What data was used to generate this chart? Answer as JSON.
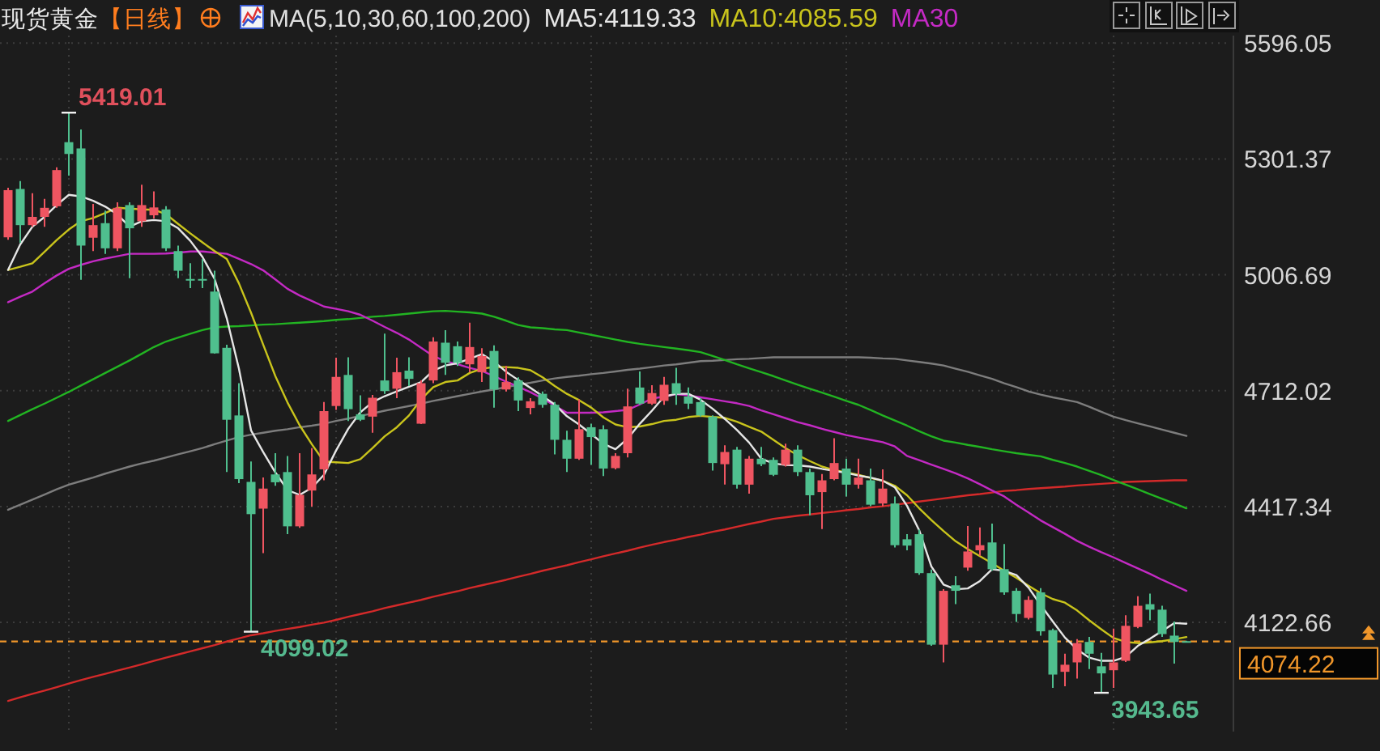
{
  "chart_data": {
    "type": "candlestick",
    "title": "现货黄金",
    "subtitle": "【日线】",
    "legend_title": "MA(5,10,30,60,100,200)",
    "legend": "top right",
    "grid": true,
    "tick_labels": "y",
    "ylim": [
      3845,
      5615
    ],
    "yticks": [
      4122.66,
      4417.34,
      4712.02,
      5006.69,
      5301.37,
      5596.05
    ],
    "categories": [
      null,
      null,
      null,
      null,
      null,
      null,
      null,
      null,
      null,
      null,
      null,
      null,
      null,
      null,
      null,
      null,
      null,
      null,
      null,
      null,
      null,
      null,
      null,
      null,
      null,
      null,
      null,
      null,
      null,
      null,
      null,
      null,
      null,
      null,
      null,
      null,
      null,
      null,
      null,
      null,
      null,
      null,
      null,
      null,
      null,
      null,
      null,
      null,
      null,
      null,
      null,
      null,
      null,
      null,
      null,
      null,
      null,
      null,
      null,
      null,
      null,
      null,
      null,
      null,
      null,
      null,
      null,
      null,
      null,
      null,
      null,
      null,
      null,
      null,
      null,
      null,
      null,
      null,
      null,
      null,
      null,
      null,
      null,
      null,
      null,
      null,
      null,
      null,
      null,
      null,
      null,
      null,
      null,
      null,
      null,
      null,
      null,
      null
    ],
    "ohlc": [
      [
        5102,
        5228,
        5096,
        5222
      ],
      [
        5225,
        5245,
        5088,
        5133
      ],
      [
        5133,
        5214,
        5129,
        5154
      ],
      [
        5154,
        5200,
        5129,
        5177
      ],
      [
        5181,
        5280,
        5177,
        5273
      ],
      [
        5344,
        5419.01,
        5259,
        5314
      ],
      [
        5328,
        5376,
        4994,
        5081
      ],
      [
        5101,
        5187,
        5067,
        5133
      ],
      [
        5138,
        5170,
        5060,
        5074
      ],
      [
        5074,
        5191,
        5067,
        5177
      ],
      [
        5184,
        5191,
        4998,
        5125
      ],
      [
        5143,
        5236,
        5129,
        5184
      ],
      [
        5158,
        5219,
        5150,
        5178
      ],
      [
        5173,
        5181,
        5067,
        5074
      ],
      [
        5067,
        5081,
        4998,
        5017
      ],
      [
        4996,
        5036,
        4973,
        4993
      ],
      [
        4996,
        5047,
        4973,
        4994
      ],
      [
        4964,
        5017,
        4806,
        4807
      ],
      [
        4821,
        4829,
        4505,
        4638
      ],
      [
        4649,
        4731,
        4477,
        4487
      ],
      [
        4480,
        4532,
        4099.02,
        4398
      ],
      [
        4412,
        4491,
        4299,
        4463
      ],
      [
        4499,
        4553,
        4470,
        4479
      ],
      [
        4505,
        4546,
        4347,
        4367
      ],
      [
        4367,
        4553,
        4363,
        4447
      ],
      [
        4458,
        4566,
        4417,
        4499
      ],
      [
        4512,
        4683,
        4484,
        4660
      ],
      [
        4673,
        4796,
        4663,
        4747
      ],
      [
        4752,
        4797,
        4635,
        4665
      ],
      [
        4652,
        4700,
        4635,
        4638
      ],
      [
        4646,
        4701,
        4605,
        4694
      ],
      [
        4738,
        4857,
        4704,
        4711
      ],
      [
        4717,
        4796,
        4693,
        4759
      ],
      [
        4763,
        4797,
        4724,
        4742
      ],
      [
        4628,
        4738,
        4627,
        4731
      ],
      [
        4738,
        4848,
        4731,
        4837
      ],
      [
        4834,
        4866,
        4752,
        4783
      ],
      [
        4825,
        4837,
        4775,
        4783
      ],
      [
        4779,
        4885,
        4759,
        4823
      ],
      [
        4759,
        4820,
        4734,
        4800
      ],
      [
        4813,
        4827,
        4669,
        4715
      ],
      [
        4715,
        4775,
        4710,
        4734
      ],
      [
        4738,
        4746,
        4660,
        4687
      ],
      [
        4668,
        4693,
        4652,
        4685
      ],
      [
        4704,
        4710,
        4669,
        4676
      ],
      [
        4676,
        4683,
        4550,
        4587
      ],
      [
        4587,
        4610,
        4505,
        4539
      ],
      [
        4539,
        4690,
        4536,
        4614
      ],
      [
        4619,
        4628,
        4523,
        4594
      ],
      [
        4614,
        4624,
        4495,
        4514
      ],
      [
        4515,
        4553,
        4512,
        4546
      ],
      [
        4553,
        4717,
        4542,
        4672
      ],
      [
        4720,
        4761,
        4676,
        4679
      ],
      [
        4679,
        4726,
        4676,
        4706
      ],
      [
        4686,
        4747,
        4676,
        4727
      ],
      [
        4731,
        4770,
        4676,
        4704
      ],
      [
        4697,
        4720,
        4665,
        4679
      ],
      [
        4683,
        4693,
        4646,
        4649
      ],
      [
        4646,
        4649,
        4509,
        4528
      ],
      [
        4525,
        4573,
        4473,
        4556
      ],
      [
        4562,
        4569,
        4463,
        4473
      ],
      [
        4473,
        4546,
        4450,
        4539
      ],
      [
        4539,
        4569,
        4520,
        4525
      ],
      [
        4536,
        4542,
        4495,
        4498
      ],
      [
        4523,
        4577,
        4519,
        4562
      ],
      [
        4562,
        4573,
        4495,
        4505
      ],
      [
        4505,
        4514,
        4395,
        4446
      ],
      [
        4454,
        4500,
        4360,
        4484
      ],
      [
        4487,
        4591,
        4484,
        4528
      ],
      [
        4514,
        4539,
        4443,
        4473
      ],
      [
        4473,
        4539,
        4463,
        4491
      ],
      [
        4484,
        4514,
        4418,
        4422
      ],
      [
        4425,
        4512,
        4418,
        4463
      ],
      [
        4425,
        4443,
        4313,
        4319
      ],
      [
        4334,
        4347,
        4306,
        4318
      ],
      [
        4347,
        4359,
        4244,
        4248
      ],
      [
        4248,
        4257,
        4063,
        4066
      ],
      [
        4066,
        4207,
        4021,
        4203
      ],
      [
        4217,
        4240,
        4169,
        4203
      ],
      [
        4262,
        4368,
        4254,
        4303
      ],
      [
        4306,
        4364,
        4292,
        4319
      ],
      [
        4326,
        4374,
        4254,
        4258
      ],
      [
        4258,
        4322,
        4193,
        4199
      ],
      [
        4203,
        4210,
        4124,
        4144
      ],
      [
        4134,
        4189,
        4130,
        4180
      ],
      [
        4199,
        4210,
        4089,
        4100
      ],
      [
        4103,
        4107,
        3956,
        3990
      ],
      [
        3997,
        4043,
        3960,
        4015
      ],
      [
        4021,
        4080,
        3980,
        4070
      ],
      [
        4073,
        4086,
        4004,
        4043
      ],
      [
        4011,
        4045,
        3943.65,
        3993
      ],
      [
        4001,
        4107,
        3956,
        4021
      ],
      [
        4025,
        4141,
        4022,
        4114
      ],
      [
        4111,
        4189,
        4108,
        4165
      ],
      [
        4169,
        4196,
        4128,
        4155
      ],
      [
        4155,
        4165,
        4086,
        4093
      ],
      [
        4089,
        4125,
        4018,
        4073
      ],
      [
        4075,
        4076,
        4073,
        4074.22
      ]
    ],
    "series": [
      {
        "name": "MA5:4119.33",
        "type": "line",
        "color": "#e6e6e6",
        "values": [
          5019,
          5084,
          5129,
          5154,
          5184,
          5210,
          5206,
          5195,
          5180,
          5160,
          5129,
          5143,
          5146,
          5143,
          5125,
          5093,
          5052,
          4996,
          4896,
          4768,
          4611,
          4556,
          4504,
          4459,
          4447,
          4465,
          4498,
          4560,
          4615,
          4657,
          4683,
          4698,
          4710,
          4722,
          4734,
          4763,
          4776,
          4782,
          4793,
          4805,
          4786,
          4760,
          4739,
          4719,
          4698,
          4677,
          4647,
          4626,
          4602,
          4577,
          4563,
          4590,
          4628,
          4661,
          4697,
          4704,
          4704,
          4689,
          4666,
          4640,
          4612,
          4580,
          4539,
          4527,
          4523,
          4522,
          4519,
          4513,
          4508,
          4503,
          4496,
          4491,
          4483,
          4466,
          4419,
          4357,
          4265,
          4219,
          4207,
          4209,
          4228,
          4258,
          4254,
          4243,
          4211,
          4167,
          4125,
          4084,
          4054,
          4033,
          4025,
          4025,
          4035,
          4063,
          4081,
          4101,
          4121,
          4119.33
        ]
      },
      {
        "name": "MA10:4085.59",
        "type": "line",
        "color": "#c9c41c",
        "values": [
          5019,
          5027,
          5036,
          5065,
          5095,
          5122,
          5143,
          5151,
          5164,
          5177,
          5175,
          5173,
          5172,
          5161,
          5136,
          5112,
          5089,
          5067,
          5047,
          4985,
          4910,
          4829,
          4749,
          4682,
          4624,
          4576,
          4532,
          4530,
          4528,
          4538,
          4566,
          4596,
          4619,
          4649,
          4690,
          4721,
          4734,
          4738,
          4757,
          4768,
          4772,
          4772,
          4770,
          4764,
          4746,
          4724,
          4704,
          4688,
          4669,
          4644,
          4626,
          4619,
          4621,
          4627,
          4635,
          4638,
          4645,
          4648,
          4645,
          4643,
          4633,
          4620,
          4608,
          4587,
          4566,
          4548,
          4533,
          4519,
          4510,
          4504,
          4498,
          4490,
          4483,
          4470,
          4446,
          4413,
          4383,
          4355,
          4329,
          4309,
          4291,
          4273,
          4254,
          4236,
          4216,
          4197,
          4182,
          4173,
          4153,
          4128,
          4105,
          4083,
          4073,
          4070,
          4072,
          4075,
          4080,
          4085.59
        ]
      },
      {
        "name": "MA30",
        "type": "line",
        "color": "#c42ac4",
        "values": [
          4937,
          4951,
          4964,
          4985,
          5005,
          5022,
          5032,
          5041,
          5048,
          5054,
          5060,
          5060,
          5060,
          5061,
          5063,
          5066,
          5066,
          5063,
          5060,
          5047,
          5034,
          5018,
          4995,
          4971,
          4954,
          4940,
          4926,
          4920,
          4914,
          4905,
          4890,
          4874,
          4859,
          4842,
          4821,
          4800,
          4787,
          4779,
          4770,
          4762,
          4749,
          4735,
          4722,
          4708,
          4692,
          4674,
          4656,
          4656,
          4656,
          4657,
          4660,
          4663,
          4677,
          4692,
          4697,
          4703,
          4700,
          4695,
          4690,
          4685,
          4680,
          4673,
          4662,
          4652,
          4642,
          4632,
          4624,
          4615,
          4607,
          4599,
          4593,
          4587,
          4581,
          4570,
          4546,
          4535,
          4524,
          4513,
          4502,
          4489,
          4474,
          4458,
          4443,
          4422,
          4402,
          4382,
          4365,
          4348,
          4330,
          4315,
          4301,
          4288,
          4274,
          4260,
          4246,
          4231,
          4217,
          4203
        ]
      },
      {
        "type": "line",
        "color": "#22b422",
        "values": [
          4635,
          4650,
          4665,
          4679,
          4694,
          4709,
          4725,
          4741,
          4757,
          4773,
          4789,
          4806,
          4823,
          4837,
          4847,
          4857,
          4866,
          4873,
          4875,
          4876,
          4878,
          4880,
          4881,
          4883,
          4885,
          4887,
          4889,
          4892,
          4894,
          4897,
          4900,
          4902,
          4905,
          4908,
          4911,
          4914,
          4915,
          4913,
          4911,
          4908,
          4900,
          4890,
          4879,
          4873,
          4871,
          4868,
          4866,
          4860,
          4854,
          4848,
          4842,
          4836,
          4831,
          4827,
          4823,
          4819,
          4815,
          4810,
          4800,
          4790,
          4779,
          4769,
          4759,
          4749,
          4738,
          4727,
          4717,
          4707,
          4697,
          4686,
          4676,
          4663,
          4649,
          4636,
          4623,
          4609,
          4596,
          4585,
          4580,
          4574,
          4569,
          4563,
          4558,
          4553,
          4549,
          4545,
          4536,
          4528,
          4519,
          4508,
          4497,
          4485,
          4473,
          4461,
          4449,
          4437,
          4425,
          4413
        ]
      },
      {
        "type": "line",
        "color": "#7d7d7d",
        "values": [
          4409,
          4422,
          4435,
          4448,
          4461,
          4473,
          4482,
          4491,
          4501,
          4510,
          4519,
          4527,
          4534,
          4542,
          4550,
          4558,
          4566,
          4576,
          4585,
          4594,
          4600,
          4605,
          4610,
          4614,
          4619,
          4623,
          4628,
          4635,
          4641,
          4648,
          4654,
          4661,
          4667,
          4673,
          4679,
          4686,
          4692,
          4698,
          4704,
          4710,
          4715,
          4721,
          4727,
          4732,
          4738,
          4743,
          4747,
          4750,
          4754,
          4757,
          4761,
          4765,
          4768,
          4772,
          4776,
          4779,
          4783,
          4787,
          4788,
          4790,
          4792,
          4793,
          4795,
          4797,
          4797,
          4797,
          4797,
          4797,
          4797,
          4797,
          4797,
          4796,
          4794,
          4793,
          4789,
          4785,
          4781,
          4776,
          4768,
          4760,
          4751,
          4742,
          4731,
          4721,
          4710,
          4702,
          4695,
          4689,
          4683,
          4671,
          4658,
          4646,
          4637,
          4629,
          4621,
          4613,
          4605,
          4597
        ]
      },
      {
        "type": "line",
        "color": "#d42a2a",
        "values": [
          3923,
          3932,
          3941,
          3949,
          3958,
          3967,
          3976,
          3984,
          3992,
          4000,
          4008,
          4016,
          4025,
          4033,
          4041,
          4049,
          4057,
          4065,
          4074,
          4082,
          4090,
          4095,
          4101,
          4106,
          4111,
          4117,
          4122,
          4129,
          4137,
          4144,
          4151,
          4159,
          4166,
          4173,
          4180,
          4188,
          4195,
          4202,
          4210,
          4217,
          4224,
          4231,
          4239,
          4246,
          4254,
          4261,
          4268,
          4276,
          4283,
          4291,
          4298,
          4305,
          4313,
          4320,
          4327,
          4333,
          4340,
          4346,
          4353,
          4359,
          4366,
          4373,
          4379,
          4386,
          4390,
          4394,
          4397,
          4401,
          4404,
          4408,
          4411,
          4415,
          4418,
          4422,
          4426,
          4430,
          4434,
          4438,
          4442,
          4446,
          4449,
          4453,
          4457,
          4459,
          4462,
          4464,
          4466,
          4468,
          4471,
          4473,
          4475,
          4477,
          4480,
          4481,
          4482,
          4483,
          4484,
          4484
        ]
      }
    ],
    "ref_lines": [
      {
        "axis": "y",
        "value": 4074.22,
        "label": "4074.22",
        "color": "#f0962a",
        "line_style": "dashed"
      }
    ],
    "annotations": [
      "5419.01",
      "4099.02",
      "3943.65"
    ]
  }
}
